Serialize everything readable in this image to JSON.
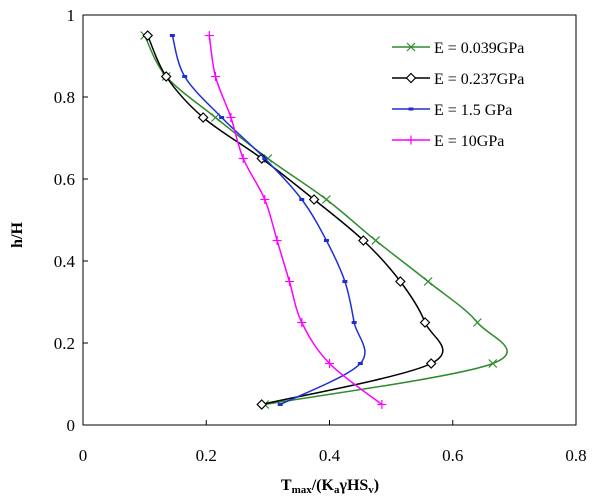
{
  "chart_data": {
    "type": "line",
    "xlabel": "Tmax/(KaγHSv)",
    "xlabel_parts": {
      "main": "T",
      "main_sub": "max",
      "mid": "/(K",
      "mid_sub": "a",
      "gamma": "γ",
      "tail": "HS",
      "tail_sub": "v",
      "close": ")"
    },
    "ylabel": "h/H",
    "xlim": [
      0,
      0.8
    ],
    "ylim": [
      0,
      1
    ],
    "xticks": [
      "0",
      "0.2",
      "0.4",
      "0.6",
      "0.8"
    ],
    "yticks": [
      "0",
      "0.2",
      "0.4",
      "0.6",
      "0.8",
      "1"
    ],
    "grid": false,
    "legend_position": "top-right",
    "series": [
      {
        "name": "E = 0.039GPa",
        "color": "#2e8b2e",
        "marker": "x",
        "x": [
          0.1,
          0.135,
          0.215,
          0.3,
          0.395,
          0.475,
          0.56,
          0.64,
          0.665,
          0.295
        ],
        "y": [
          0.95,
          0.85,
          0.75,
          0.65,
          0.55,
          0.45,
          0.35,
          0.25,
          0.15,
          0.05
        ]
      },
      {
        "name": "E = 0.237GPa",
        "color": "#000000",
        "marker": "diamond",
        "x": [
          0.105,
          0.135,
          0.195,
          0.29,
          0.375,
          0.455,
          0.515,
          0.555,
          0.565,
          0.29
        ],
        "y": [
          0.95,
          0.85,
          0.75,
          0.65,
          0.55,
          0.45,
          0.35,
          0.25,
          0.15,
          0.05
        ]
      },
      {
        "name": "E = 1.5 GPa",
        "color": "#1f2fd6",
        "marker": "dash",
        "x": [
          0.145,
          0.165,
          0.225,
          0.295,
          0.355,
          0.395,
          0.425,
          0.44,
          0.45,
          0.32
        ],
        "y": [
          0.95,
          0.85,
          0.75,
          0.65,
          0.55,
          0.45,
          0.35,
          0.25,
          0.15,
          0.05
        ]
      },
      {
        "name": "E = 10GPa",
        "color": "#ff00ff",
        "marker": "plus",
        "x": [
          0.205,
          0.215,
          0.24,
          0.26,
          0.295,
          0.315,
          0.335,
          0.355,
          0.4,
          0.485
        ],
        "y": [
          0.95,
          0.85,
          0.75,
          0.65,
          0.55,
          0.45,
          0.35,
          0.25,
          0.15,
          0.05
        ]
      }
    ]
  }
}
